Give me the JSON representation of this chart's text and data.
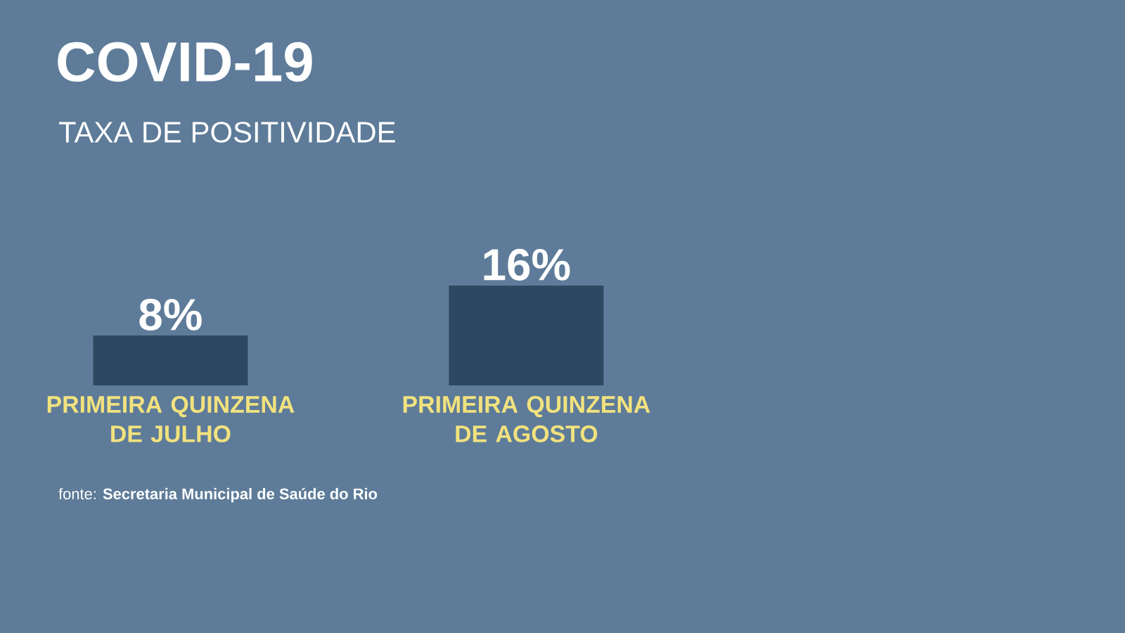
{
  "chart_data": {
    "type": "bar",
    "title": "COVID-19",
    "subtitle": "TAXA DE POSITIVIDADE",
    "categories": [
      "PRIMEIRA QUINZENA DE JULHO",
      "PRIMEIRA QUINZENA DE AGOSTO"
    ],
    "values": [
      8,
      16
    ],
    "value_labels": [
      "8%",
      "16%"
    ],
    "color": "#2f4862",
    "annotations": [
      "fonte: **Secretaria Municipal de Saúde do Rio**"
    ]
  }
}
